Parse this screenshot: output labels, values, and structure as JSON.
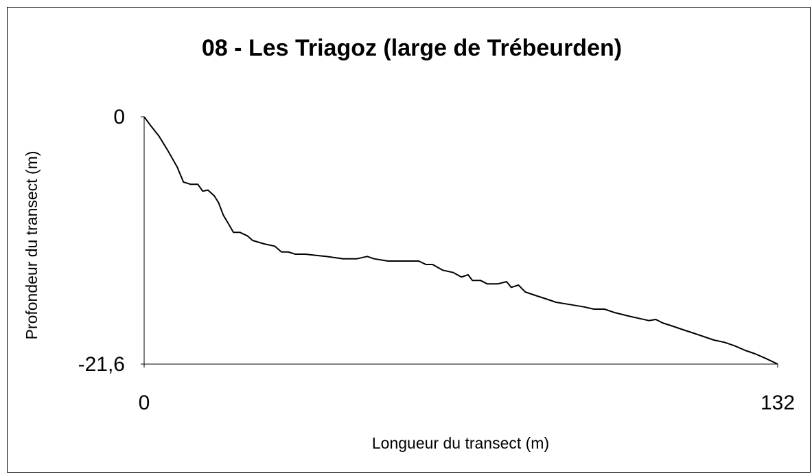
{
  "chart_data": {
    "type": "line",
    "title": "08 - Les Triagoz (large de Trébeurden)",
    "xlabel": "Longueur du transect (m)",
    "ylabel": "Profondeur du transect (m)",
    "xlim": [
      0,
      132
    ],
    "xticks": [
      0,
      132
    ],
    "ylim": [
      -21.6,
      0
    ],
    "yticks": [
      0,
      {
        "value": -21.6,
        "label": "-21,6"
      }
    ],
    "grid": false,
    "series": [
      {
        "name": "Profondeur",
        "color": "#000000",
        "x": [
          0,
          1.4,
          3.1,
          5.0,
          6.9,
          8.2,
          9.7,
          11.2,
          12.2,
          13.3,
          14.6,
          15.5,
          16.5,
          17.5,
          18.6,
          20.0,
          21.5,
          22.6,
          25.0,
          27.2,
          28.6,
          30.0,
          31.5,
          33.6,
          35.8,
          37.9,
          41.5,
          44.3,
          46.5,
          47.9,
          50.8,
          54.4,
          57.2,
          58.7,
          60.1,
          62.2,
          64.4,
          66.1,
          67.5,
          68.4,
          70.1,
          71.5,
          73.7,
          75.5,
          76.5,
          78.0,
          79.4,
          81.5,
          83.7,
          85.8,
          88.7,
          91.6,
          93.7,
          95.9,
          98.0,
          100.9,
          103.0,
          105.2,
          106.6,
          108.0,
          110.2,
          112.3,
          114.5,
          116.6,
          118.7,
          120.9,
          123.0,
          125.2,
          127.3,
          129.5,
          132
        ],
        "values": [
          0,
          -0.8,
          -1.7,
          -3.0,
          -4.4,
          -5.7,
          -5.9,
          -5.9,
          -6.5,
          -6.4,
          -6.9,
          -7.5,
          -8.6,
          -9.3,
          -10.1,
          -10.1,
          -10.4,
          -10.8,
          -11.1,
          -11.3,
          -11.8,
          -11.8,
          -12.0,
          -12.0,
          -12.1,
          -12.2,
          -12.4,
          -12.4,
          -12.2,
          -12.4,
          -12.6,
          -12.6,
          -12.6,
          -12.9,
          -12.9,
          -13.4,
          -13.6,
          -14.0,
          -13.8,
          -14.3,
          -14.3,
          -14.6,
          -14.6,
          -14.4,
          -14.9,
          -14.7,
          -15.3,
          -15.6,
          -15.9,
          -16.2,
          -16.4,
          -16.6,
          -16.8,
          -16.8,
          -17.1,
          -17.4,
          -17.6,
          -17.8,
          -17.7,
          -18.0,
          -18.3,
          -18.6,
          -18.9,
          -19.2,
          -19.5,
          -19.7,
          -20.0,
          -20.4,
          -20.7,
          -21.1,
          -21.6
        ]
      }
    ]
  }
}
